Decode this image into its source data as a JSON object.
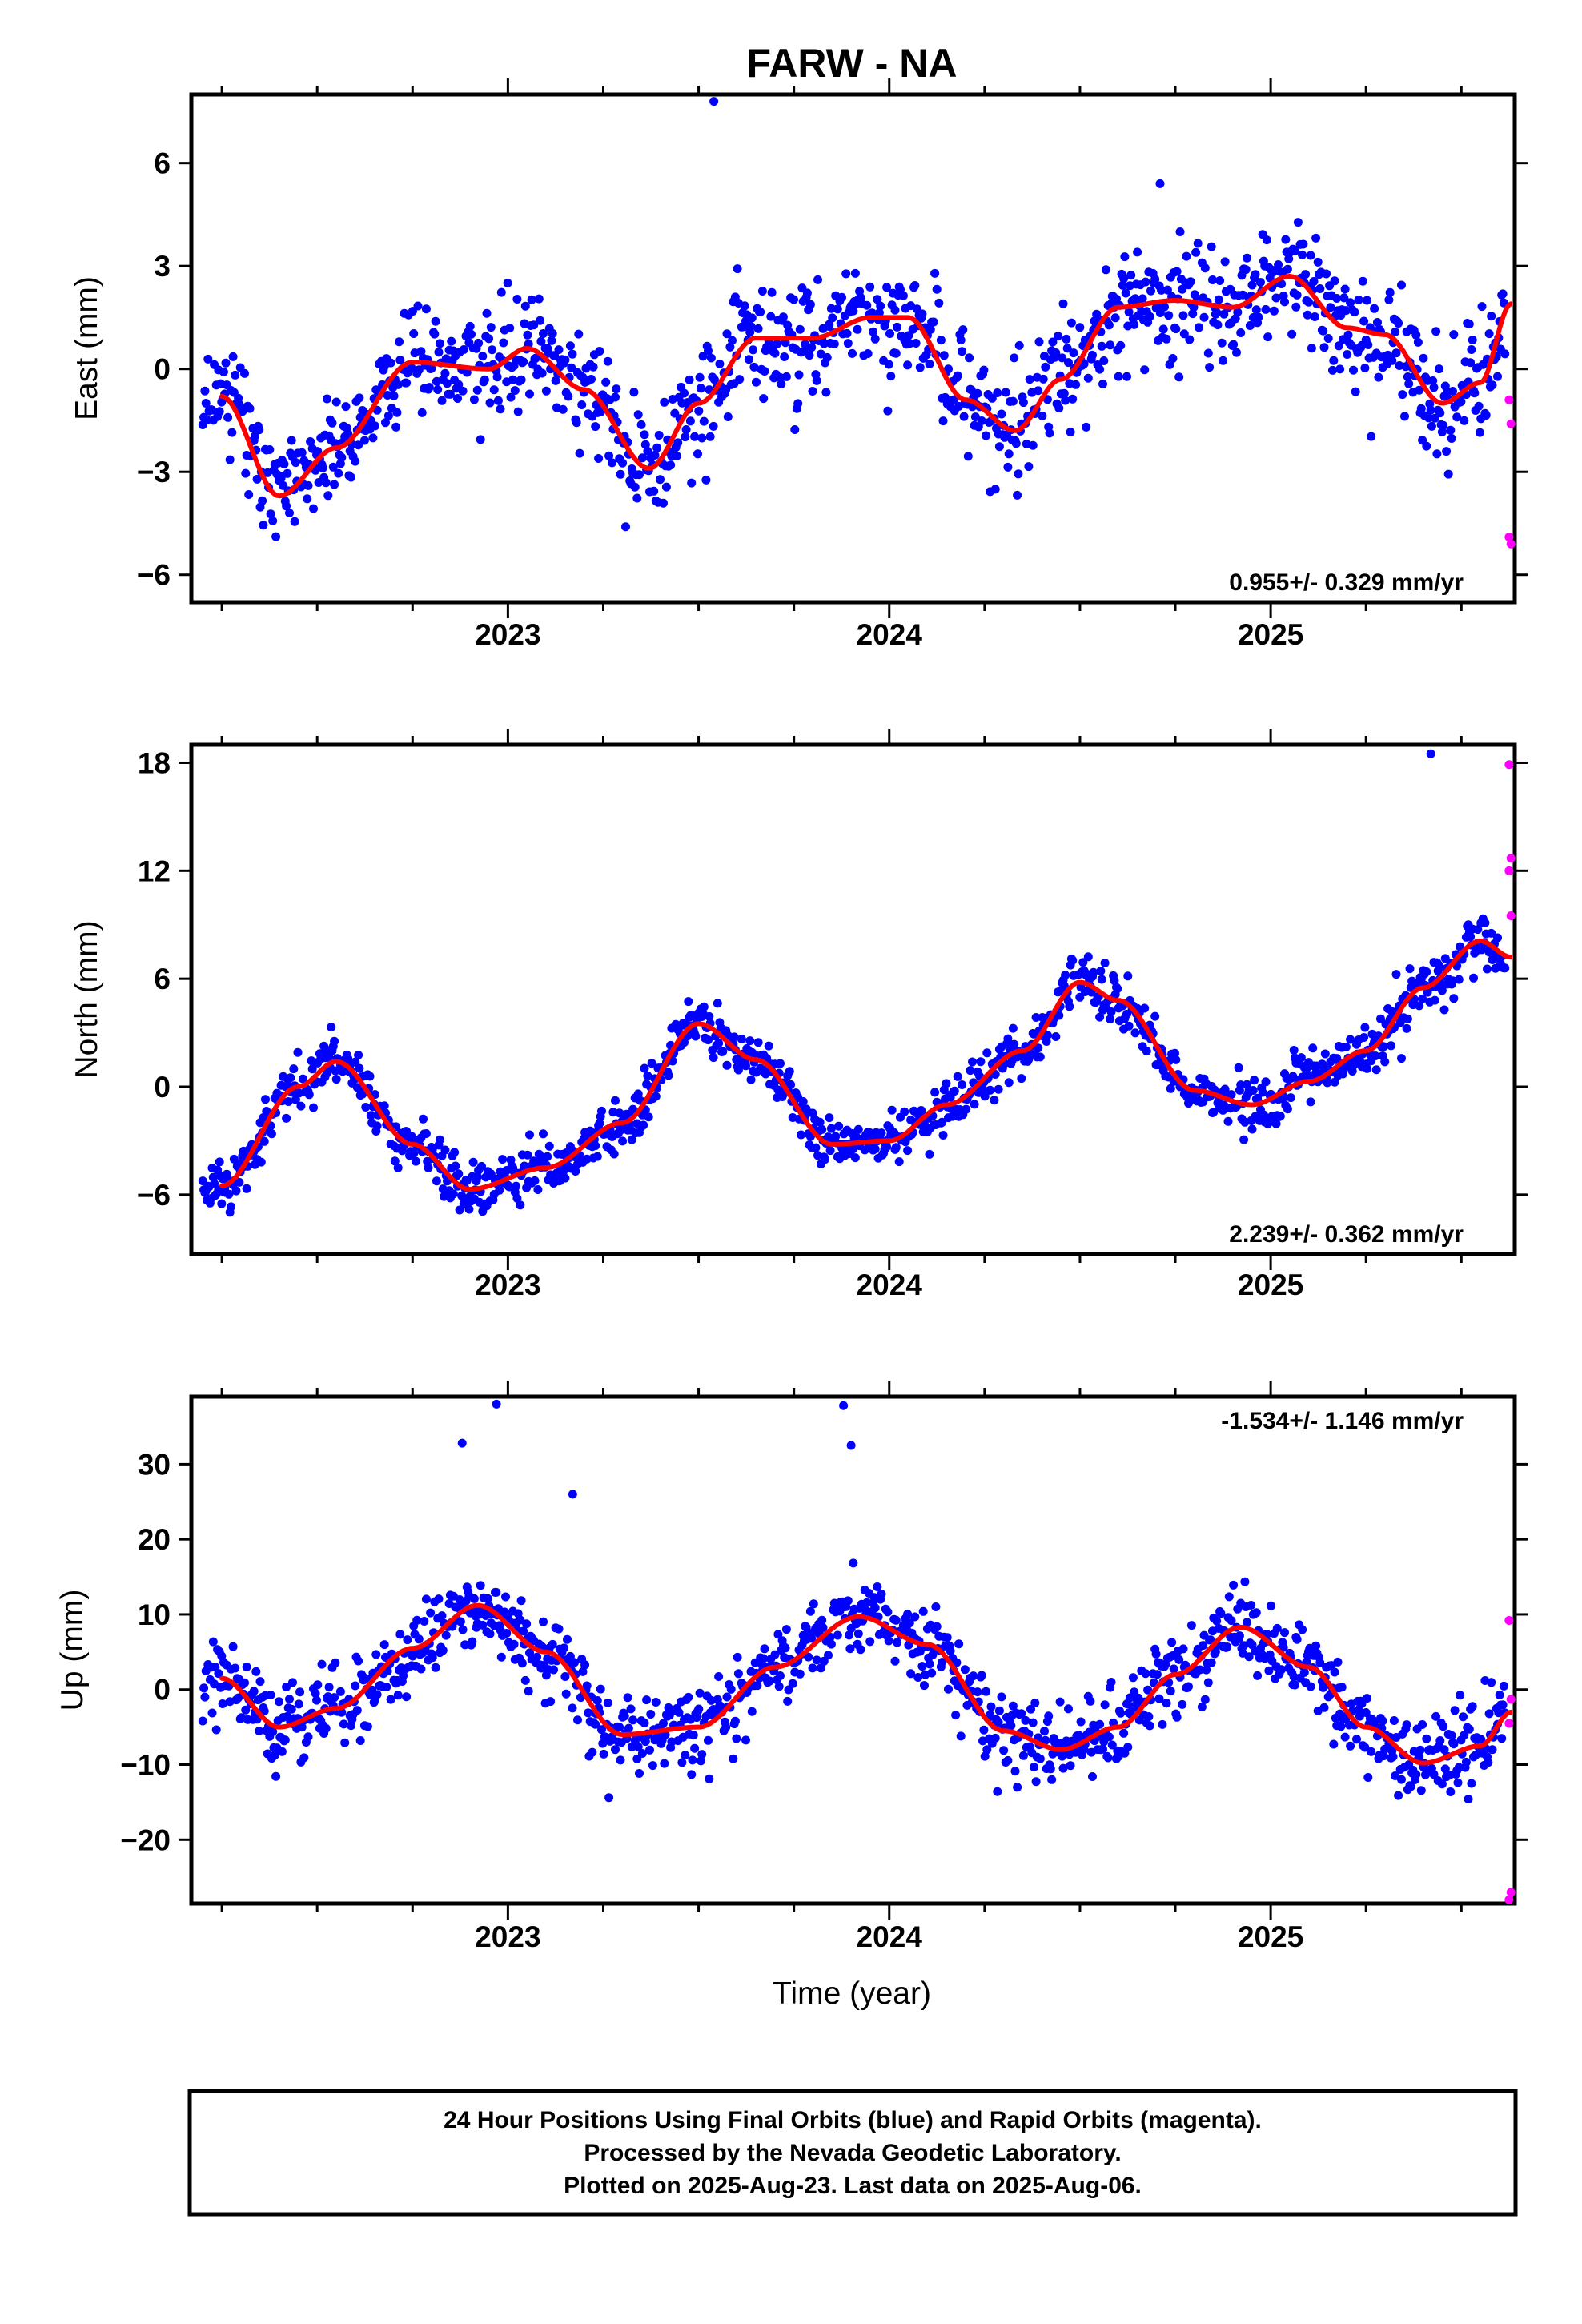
{
  "chart_data": {
    "type": "scatter",
    "title": "FARW - NA",
    "xlabel": "Time (year)",
    "x_range": [
      2022.17,
      2025.64
    ],
    "x_ticks": [
      2023,
      2024,
      2025
    ],
    "x_minor_ticks": [
      2022.25,
      2022.5,
      2022.75,
      2023.25,
      2023.5,
      2023.75,
      2024.25,
      2024.5,
      2024.75,
      2025.25,
      2025.5
    ],
    "legend": {
      "final_orbits_color": "#0000ff",
      "rapid_orbits_color": "#ff00ff",
      "model_color": "#ff0000"
    },
    "panels": [
      {
        "name": "east",
        "ylabel": "East (mm)",
        "ylim": [
          -6.8,
          8.0
        ],
        "yticks": [
          -6,
          -3,
          0,
          3,
          6
        ],
        "rate_label": "0.955+/- 0.329 mm/yr",
        "rate_position": "bottom-right",
        "model_curve": {
          "x": [
            2022.25,
            2022.4,
            2022.55,
            2022.75,
            2022.95,
            2023.05,
            2023.2,
            2023.37,
            2023.5,
            2023.65,
            2023.8,
            2023.95,
            2024.05,
            2024.2,
            2024.33,
            2024.45,
            2024.6,
            2024.75,
            2024.9,
            2025.05,
            2025.2,
            2025.3,
            2025.45,
            2025.55,
            2025.63
          ],
          "y": [
            -0.8,
            -3.7,
            -2.3,
            0.2,
            0.0,
            0.6,
            -0.6,
            -2.9,
            -1.0,
            0.9,
            0.9,
            1.5,
            1.5,
            -0.9,
            -1.8,
            -0.3,
            1.8,
            2.0,
            1.8,
            2.7,
            1.2,
            1.0,
            -1.0,
            -0.4,
            1.9
          ]
        },
        "rapid_points": {
          "x": [
            2025.625,
            2025.63,
            2025.625,
            2025.63
          ],
          "y": [
            -0.9,
            -1.6,
            -4.9,
            -5.1
          ]
        },
        "outliers": {
          "x": [
            2023.54,
            2024.71
          ],
          "y": [
            7.8,
            5.4
          ]
        }
      },
      {
        "name": "north",
        "ylabel": "North (mm)",
        "ylim": [
          -9.3,
          19.0
        ],
        "yticks": [
          -6,
          0,
          6,
          12,
          18
        ],
        "rate_label": "2.239+/- 0.362 mm/yr",
        "rate_position": "bottom-right",
        "model_curve": {
          "x": [
            2022.25,
            2022.45,
            2022.55,
            2022.75,
            2022.9,
            2023.1,
            2023.3,
            2023.5,
            2023.65,
            2023.85,
            2024.0,
            2024.15,
            2024.35,
            2024.5,
            2024.6,
            2024.8,
            2024.95,
            2025.1,
            2025.25,
            2025.4,
            2025.55,
            2025.63
          ],
          "y": [
            -5.5,
            0.0,
            1.4,
            -3.2,
            -5.7,
            -4.5,
            -2.0,
            3.5,
            1.5,
            -3.2,
            -3.0,
            -1.0,
            2.0,
            5.8,
            4.8,
            -0.2,
            -1.0,
            0.3,
            2.0,
            5.5,
            8.1,
            7.2
          ]
        },
        "rapid_points": {
          "x": [
            2025.625,
            2025.63,
            2025.625,
            2025.63
          ],
          "y": [
            17.9,
            12.7,
            12.0,
            9.5
          ]
        },
        "outliers": {
          "x": [
            2025.42
          ],
          "y": [
            18.5
          ]
        }
      },
      {
        "name": "up",
        "ylabel": "Up (mm)",
        "ylim": [
          -28.5,
          39.0
        ],
        "yticks": [
          -20,
          -10,
          0,
          10,
          20,
          30
        ],
        "rate_label": "-1.534+/- 1.146 mm/yr",
        "rate_position": "top-right",
        "model_curve": {
          "x": [
            2022.25,
            2022.4,
            2022.55,
            2022.75,
            2022.92,
            2023.1,
            2023.3,
            2023.5,
            2023.7,
            2023.92,
            2024.1,
            2024.3,
            2024.45,
            2024.6,
            2024.75,
            2024.92,
            2025.1,
            2025.25,
            2025.4,
            2025.55,
            2025.63
          ],
          "y": [
            1.5,
            -5.0,
            -2.5,
            5.5,
            11.2,
            5.0,
            -6.0,
            -5.0,
            3.0,
            9.7,
            6.0,
            -5.5,
            -8.0,
            -5.0,
            2.0,
            8.3,
            3.0,
            -5.0,
            -9.8,
            -7.5,
            -3.0
          ]
        },
        "rapid_points": {
          "x": [
            2025.625,
            2025.63,
            2025.625,
            2025.63,
            2025.625
          ],
          "y": [
            9.2,
            -1.3,
            -4.5,
            -27.0,
            -28.0
          ]
        },
        "outliers": {
          "x": [
            2022.97,
            2022.88,
            2023.88,
            2023.9,
            2023.17
          ],
          "y": [
            38.0,
            32.8,
            37.8,
            32.5,
            26.0
          ]
        }
      }
    ],
    "caption": [
      "24 Hour Positions Using Final Orbits (blue) and Rapid Orbits (magenta).",
      "Processed by the Nevada Geodetic Laboratory.",
      "Plotted on 2025-Aug-23. Last data on 2025-Aug-06."
    ]
  }
}
